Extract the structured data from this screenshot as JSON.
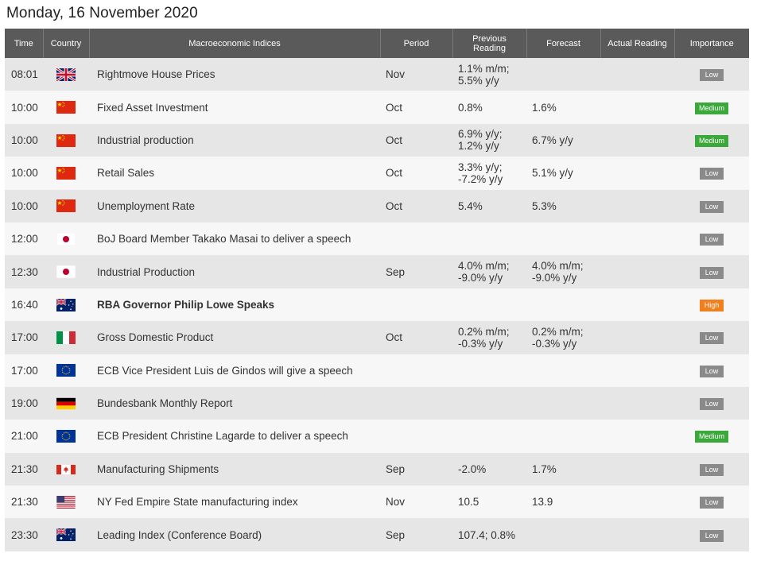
{
  "page": {
    "date_title": "Monday, 16 November 2020"
  },
  "table": {
    "headers": {
      "time": "Time",
      "country": "Country",
      "indices": "Macroeconomic Indices",
      "period": "Period",
      "previous_line1": "Previous",
      "previous_line2": "Reading",
      "forecast": "Forecast",
      "actual": "Actual Reading",
      "importance": "Importance"
    },
    "rows": [
      {
        "time": "08:01",
        "flag": "uk-flag-icon",
        "name": "Rightmove House Prices",
        "bold": false,
        "period": "Nov",
        "prev1": "1.1% m/m;",
        "prev2": "5.5% y/y",
        "fc1": "",
        "fc2": "",
        "actual": "",
        "importance": "Low",
        "level": "low"
      },
      {
        "time": "10:00",
        "flag": "china-flag-icon",
        "name": "Fixed Asset Investment",
        "bold": false,
        "period": "Oct",
        "prev1": "0.8%",
        "prev2": "",
        "fc1": "1.6%",
        "fc2": "",
        "actual": "",
        "importance": "Medium",
        "level": "medium"
      },
      {
        "time": "10:00",
        "flag": "china-flag-icon",
        "name": "Industrial production",
        "bold": false,
        "period": "Oct",
        "prev1": "6.9% y/y;",
        "prev2": "1.2% y/y",
        "fc1": "6.7% y/y",
        "fc2": "",
        "actual": "",
        "importance": "Medium",
        "level": "medium"
      },
      {
        "time": "10:00",
        "flag": "china-flag-icon",
        "name": "Retail Sales",
        "bold": false,
        "period": "Oct",
        "prev1": "3.3% y/y;",
        "prev2": "-7.2% y/y",
        "fc1": "5.1% y/y",
        "fc2": "",
        "actual": "",
        "importance": "Low",
        "level": "low"
      },
      {
        "time": "10:00",
        "flag": "china-flag-icon",
        "name": "Unemployment Rate",
        "bold": false,
        "period": "Oct",
        "prev1": "5.4%",
        "prev2": "",
        "fc1": "5.3%",
        "fc2": "",
        "actual": "",
        "importance": "Low",
        "level": "low"
      },
      {
        "time": "12:00",
        "flag": "japan-flag-icon",
        "name": "BoJ Board Member Takako Masai to deliver a speech",
        "bold": false,
        "period": "",
        "prev1": "",
        "prev2": "",
        "fc1": "",
        "fc2": "",
        "actual": "",
        "importance": "Low",
        "level": "low"
      },
      {
        "time": "12:30",
        "flag": "japan-flag-icon",
        "name": "Industrial Production",
        "bold": false,
        "period": "Sep",
        "prev1": "4.0% m/m;",
        "prev2": "-9.0% y/y",
        "fc1": "4.0% m/m;",
        "fc2": "-9.0% y/y",
        "actual": "",
        "importance": "Low",
        "level": "low"
      },
      {
        "time": "16:40",
        "flag": "australia-flag-icon",
        "name": "RBA Governor Philip Lowe Speaks",
        "bold": true,
        "period": "",
        "prev1": "",
        "prev2": "",
        "fc1": "",
        "fc2": "",
        "actual": "",
        "importance": "High",
        "level": "high"
      },
      {
        "time": "17:00",
        "flag": "italy-flag-icon",
        "name": "Gross Domestic Product",
        "bold": false,
        "period": "Oct",
        "prev1": "0.2% m/m;",
        "prev2": "-0.3% y/y",
        "fc1": "0.2% m/m;",
        "fc2": "-0.3% y/y",
        "actual": "",
        "importance": "Low",
        "level": "low"
      },
      {
        "time": "17:00",
        "flag": "eu-flag-icon",
        "name": "ECB Vice President Luis de Gindos will give a speech",
        "bold": false,
        "period": "",
        "prev1": "",
        "prev2": "",
        "fc1": "",
        "fc2": "",
        "actual": "",
        "importance": "Low",
        "level": "low"
      },
      {
        "time": "19:00",
        "flag": "germany-flag-icon",
        "name": "Bundesbank Monthly Report",
        "bold": false,
        "period": "",
        "prev1": "",
        "prev2": "",
        "fc1": "",
        "fc2": "",
        "actual": "",
        "importance": "Low",
        "level": "low"
      },
      {
        "time": "21:00",
        "flag": "eu-flag-icon",
        "name": "ECB President Christine Lagarde to deliver a speech",
        "bold": false,
        "period": "",
        "prev1": "",
        "prev2": "",
        "fc1": "",
        "fc2": "",
        "actual": "",
        "importance": "Medium",
        "level": "medium"
      },
      {
        "time": "21:30",
        "flag": "canada-flag-icon",
        "name": "Manufacturing Shipments",
        "bold": false,
        "period": "Sep",
        "prev1": "-2.0%",
        "prev2": "",
        "fc1": "1.7%",
        "fc2": "",
        "actual": "",
        "importance": "Low",
        "level": "low"
      },
      {
        "time": "21:30",
        "flag": "usa-flag-icon",
        "name": "NY Fed Empire State manufacturing index",
        "bold": false,
        "period": "Nov",
        "prev1": "10.5",
        "prev2": "",
        "fc1": "13.9",
        "fc2": "",
        "actual": "",
        "importance": "Low",
        "level": "low"
      },
      {
        "time": "23:30",
        "flag": "australia-flag-icon",
        "name": "Leading Index (Conference Board)",
        "bold": false,
        "period": "Sep",
        "prev1": "107.4; 0.8%",
        "prev2": "",
        "fc1": "",
        "fc2": "",
        "actual": "",
        "importance": "Low",
        "level": "low"
      }
    ]
  }
}
